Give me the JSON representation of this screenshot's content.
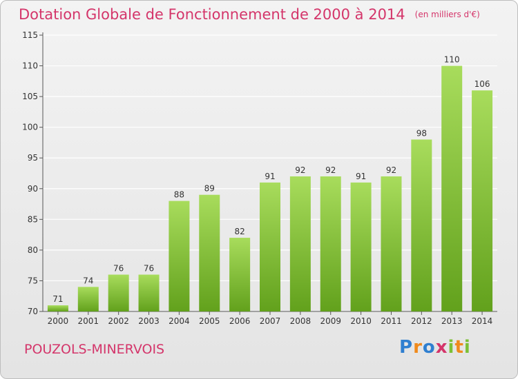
{
  "header": {
    "title": "Dotation Globale de Fonctionnement de 2000 à 2014",
    "unit": "(en milliers d'€)"
  },
  "footer": {
    "city": "POUZOLS-MINERVOIS",
    "logo": "Proxiti"
  },
  "colors": {
    "bar_light": "#a8dc5c",
    "bar_dark": "#62a11c",
    "title": "#d4356a",
    "grid": "#ffffff"
  },
  "chart_data": {
    "type": "bar",
    "title": "Dotation Globale de Fonctionnement de 2000 à 2014",
    "subtitle": "(en milliers d'€)",
    "xlabel": "",
    "ylabel": "",
    "categories": [
      "2000",
      "2001",
      "2002",
      "2003",
      "2004",
      "2005",
      "2006",
      "2007",
      "2008",
      "2009",
      "2010",
      "2011",
      "2012",
      "2013",
      "2014"
    ],
    "values": [
      71,
      74,
      76,
      76,
      88,
      89,
      82,
      91,
      92,
      92,
      91,
      92,
      98,
      110,
      106
    ],
    "ylim": [
      70,
      115
    ],
    "yticks": [
      70,
      75,
      80,
      85,
      90,
      95,
      100,
      105,
      110,
      115
    ],
    "grid": true,
    "legend": "none"
  }
}
